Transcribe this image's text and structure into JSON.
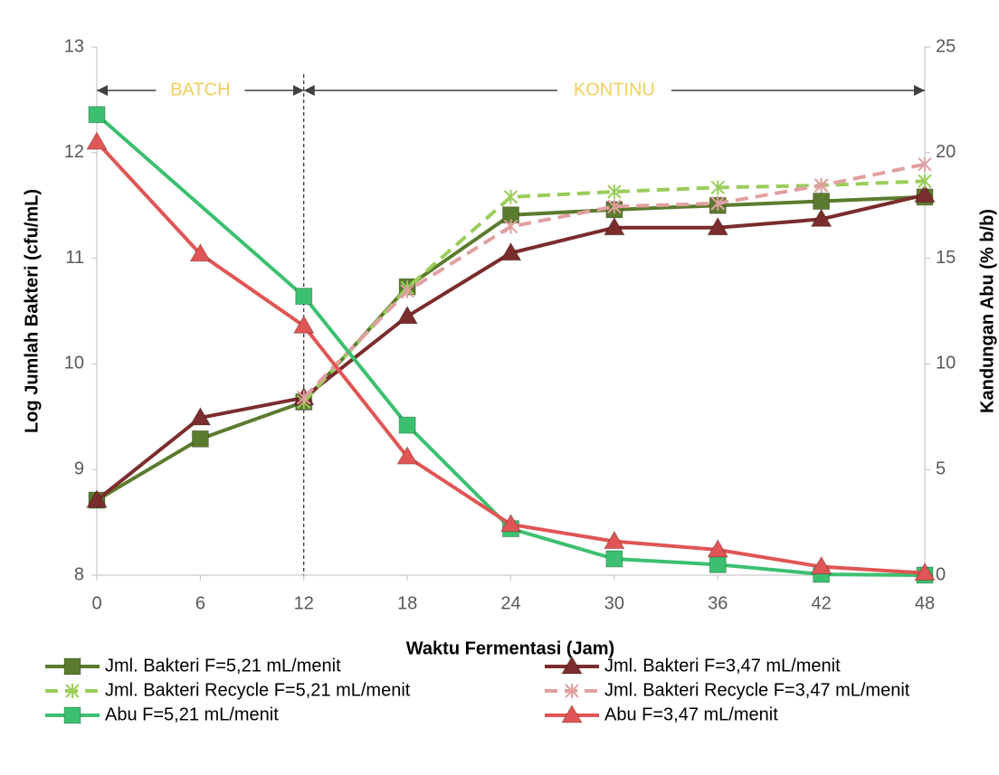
{
  "chart_data": {
    "type": "line",
    "x_label": "Waktu Fermentasi (Jam)",
    "y_label": "Log Jumlah Bakteri (cfu/mL)",
    "y2_label": "Kandungan Abu (% b/b)",
    "xlim": [
      0,
      48
    ],
    "xticks": [
      0,
      6,
      12,
      18,
      24,
      30,
      36,
      42,
      48
    ],
    "ylim": [
      8,
      13
    ],
    "yticks": [
      8,
      9,
      10,
      11,
      12,
      13
    ],
    "y2lim": [
      0,
      25
    ],
    "y2ticks": [
      0,
      5,
      10,
      15,
      20,
      25
    ],
    "divider_x": 12,
    "annotations": [
      {
        "text": "BATCH",
        "from": 0,
        "to": 12,
        "color": "#f2cf5b"
      },
      {
        "text": "KONTINU",
        "from": 12,
        "to": 48,
        "color": "#f2cf5b"
      }
    ],
    "series": [
      {
        "name": "Jml. Bakteri F=5,21 mL/menit",
        "color": "#5b7b2e",
        "marker": "square",
        "dash": false,
        "x": [
          0,
          6,
          12,
          18,
          24,
          30,
          36,
          42,
          48
        ],
        "values": [
          8.71,
          9.29,
          9.64,
          10.73,
          11.41,
          11.46,
          11.5,
          11.54,
          11.58
        ]
      },
      {
        "name": "Jml. Bakteri F=3,47 mL/menit",
        "color": "#7b2c2c",
        "marker": "triangle",
        "dash": false,
        "x": [
          0,
          6,
          12,
          18,
          24,
          30,
          36,
          42,
          48
        ],
        "values": [
          8.71,
          9.49,
          9.68,
          10.45,
          11.05,
          11.29,
          11.29,
          11.37,
          11.6
        ]
      },
      {
        "name": "Jml. Bakteri Recycle F=5,21 mL/menit",
        "color": "#9acd5a",
        "marker": "star",
        "dash": true,
        "x": [
          12,
          18,
          24,
          30,
          36,
          42,
          48
        ],
        "values": [
          9.64,
          10.72,
          11.58,
          11.63,
          11.67,
          11.69,
          11.73
        ]
      },
      {
        "name": "Jml. Bakteri Recycle F=3,47 mL/menit",
        "color": "#e0a0a0",
        "marker": "star",
        "dash": true,
        "x": [
          12,
          18,
          24,
          30,
          36,
          42,
          48
        ],
        "values": [
          9.68,
          10.69,
          11.3,
          11.49,
          11.52,
          11.69,
          11.89
        ]
      },
      {
        "name": "Abu F=5,21 mL/menit",
        "color": "#3cc070",
        "marker": "square",
        "dash": false,
        "axis": "y2",
        "x": [
          0,
          12,
          18,
          24,
          30,
          36,
          42,
          48
        ],
        "values": [
          21.8,
          13.2,
          7.1,
          2.2,
          0.77,
          0.5,
          0.04,
          0
        ]
      },
      {
        "name": "Abu F=3,47 mL/menit",
        "color": "#e05555",
        "marker": "triangle",
        "dash": false,
        "axis": "y2",
        "x": [
          0,
          6,
          12,
          18,
          24,
          30,
          36,
          42,
          48
        ],
        "values": [
          20.5,
          15.2,
          11.8,
          5.6,
          2.4,
          1.6,
          1.2,
          0.4,
          0.1
        ]
      }
    ]
  }
}
